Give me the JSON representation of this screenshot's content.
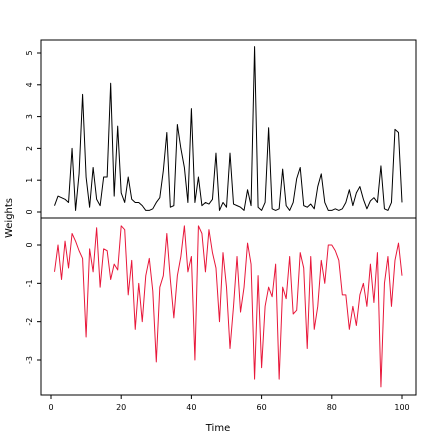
{
  "chart_data": {
    "type": "line",
    "xlabel": "Time",
    "ylabel": "Weights",
    "xlim": [
      0,
      100
    ],
    "x_ticks": [
      "0",
      "20",
      "40",
      "60",
      "80",
      "100"
    ],
    "panels": [
      {
        "name": "",
        "color": "#000000",
        "ylim": [
          0,
          5.2
        ],
        "y_ticks": [
          "0",
          "1",
          "2",
          "3",
          "4",
          "5"
        ],
        "x": [
          1,
          2,
          3,
          4,
          5,
          6,
          7,
          8,
          9,
          10,
          11,
          12,
          13,
          14,
          15,
          16,
          17,
          18,
          19,
          20,
          21,
          22,
          23,
          24,
          25,
          26,
          27,
          28,
          29,
          30,
          31,
          32,
          33,
          34,
          35,
          36,
          37,
          38,
          39,
          40,
          41,
          42,
          43,
          44,
          45,
          46,
          47,
          48,
          49,
          50,
          51,
          52,
          53,
          54,
          55,
          56,
          57,
          58,
          59,
          60,
          61,
          62,
          63,
          64,
          65,
          66,
          67,
          68,
          69,
          70,
          71,
          72,
          73,
          74,
          75,
          76,
          77,
          78,
          79,
          80,
          81,
          82,
          83,
          84,
          85,
          86,
          87,
          88,
          89,
          90,
          91,
          92,
          93,
          94,
          95,
          96,
          97,
          98,
          99,
          100
        ],
        "values": [
          0.2,
          0.5,
          0.45,
          0.4,
          0.3,
          2.0,
          0.05,
          1.2,
          3.7,
          1.1,
          0.15,
          1.4,
          0.4,
          0.2,
          1.1,
          1.1,
          4.05,
          0.5,
          2.7,
          0.6,
          0.3,
          1.1,
          0.4,
          0.3,
          0.3,
          0.2,
          0.05,
          0.05,
          0.1,
          0.3,
          0.45,
          1.3,
          2.5,
          0.15,
          0.2,
          2.75,
          2.0,
          1.4,
          0.3,
          3.25,
          0.3,
          1.1,
          0.2,
          0.3,
          0.25,
          0.4,
          1.85,
          0.05,
          0.3,
          0.15,
          1.85,
          0.25,
          0.2,
          0.15,
          0.05,
          0.7,
          0.2,
          5.2,
          0.15,
          0.05,
          0.3,
          2.65,
          0.1,
          0.05,
          0.1,
          1.35,
          0.2,
          0.05,
          0.3,
          1.05,
          1.4,
          0.2,
          0.15,
          0.25,
          0.1,
          0.8,
          1.2,
          0.3,
          0.05,
          0.05,
          0.1,
          0.05,
          0.1,
          0.3,
          0.7,
          0.2,
          0.6,
          0.8,
          0.4,
          0.1,
          0.35,
          0.45,
          0.3,
          1.45,
          0.1,
          0.05,
          0.3,
          2.6,
          2.5,
          0.3
        ]
      },
      {
        "name": "",
        "color": "#E8173A",
        "ylim": [
          -3.75,
          0.6
        ],
        "y_ticks": [
          "-3",
          "-2",
          "-1",
          "0"
        ],
        "x": [
          1,
          2,
          3,
          4,
          5,
          6,
          7,
          8,
          9,
          10,
          11,
          12,
          13,
          14,
          15,
          16,
          17,
          18,
          19,
          20,
          21,
          22,
          23,
          24,
          25,
          26,
          27,
          28,
          29,
          30,
          31,
          32,
          33,
          34,
          35,
          36,
          37,
          38,
          39,
          40,
          41,
          42,
          43,
          44,
          45,
          46,
          47,
          48,
          49,
          50,
          51,
          52,
          53,
          54,
          55,
          56,
          57,
          58,
          59,
          60,
          61,
          62,
          63,
          64,
          65,
          66,
          67,
          68,
          69,
          70,
          71,
          72,
          73,
          74,
          75,
          76,
          77,
          78,
          79,
          80,
          81,
          82,
          83,
          84,
          85,
          86,
          87,
          88,
          89,
          90,
          91,
          92,
          93,
          94,
          95,
          96,
          97,
          98,
          99,
          100
        ],
        "values": [
          -0.7,
          0.0,
          -0.9,
          0.1,
          -0.6,
          0.3,
          0.1,
          -0.15,
          -0.35,
          -2.4,
          -0.1,
          -0.7,
          0.45,
          -1.1,
          -0.1,
          -0.15,
          -0.9,
          -0.5,
          -0.65,
          0.5,
          0.4,
          -1.3,
          -0.4,
          -2.2,
          -1.0,
          -2.0,
          -0.8,
          -0.35,
          -1.2,
          -3.05,
          -1.1,
          -0.8,
          0.3,
          -0.9,
          -1.9,
          -0.8,
          -0.3,
          0.5,
          -0.7,
          -0.3,
          -3.0,
          0.5,
          0.3,
          -0.7,
          0.4,
          -0.2,
          -0.6,
          -2.0,
          -0.2,
          -1.1,
          -2.7,
          -1.6,
          -0.3,
          -1.75,
          -1.1,
          0.05,
          -0.5,
          -3.5,
          -0.8,
          -3.2,
          -1.6,
          -1.1,
          -1.35,
          -0.5,
          -3.5,
          -1.1,
          -1.4,
          -0.3,
          -1.8,
          -1.7,
          -0.2,
          -0.6,
          -2.7,
          -0.3,
          -2.2,
          -1.6,
          -0.4,
          -1.0,
          0.0,
          0.0,
          -0.15,
          -0.4,
          -1.3,
          -1.3,
          -2.2,
          -1.6,
          -2.1,
          -1.3,
          -1.0,
          -1.6,
          -0.5,
          -1.5,
          -0.2,
          -3.7,
          -1.0,
          -0.3,
          -1.6,
          -0.4,
          0.05,
          -0.8
        ]
      }
    ]
  }
}
